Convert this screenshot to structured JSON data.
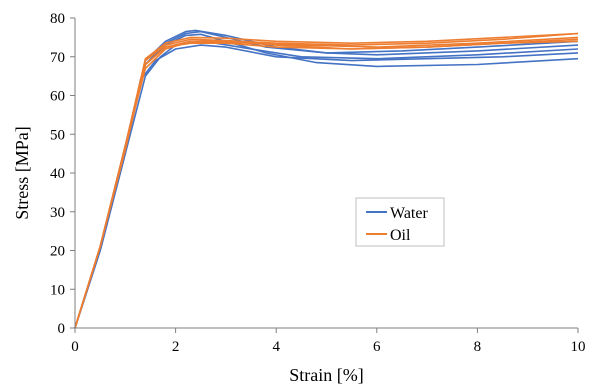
{
  "chart_data": {
    "type": "line",
    "title": "",
    "xlabel": "Strain [%]",
    "ylabel": "Stress [MPa]",
    "xlim": [
      0,
      10
    ],
    "ylim": [
      0,
      80
    ],
    "xticks": [
      0,
      2,
      4,
      6,
      8,
      10
    ],
    "yticks": [
      0,
      10,
      20,
      30,
      40,
      50,
      60,
      70,
      80
    ],
    "grid": false,
    "legend": {
      "placement": "center-right",
      "entries": [
        "Water",
        "Oil"
      ]
    },
    "colors": {
      "Water": "#4472C4",
      "Oil": "#ED7D31"
    },
    "series": [
      {
        "name": "Water",
        "color": "#4472C4",
        "points": [
          [
            0,
            0
          ],
          [
            0.5,
            20
          ],
          [
            1.0,
            45
          ],
          [
            1.4,
            65
          ],
          [
            1.7,
            70
          ],
          [
            2.0,
            73
          ],
          [
            2.3,
            74
          ],
          [
            2.8,
            73.5
          ],
          [
            3.5,
            72
          ],
          [
            4.5,
            70
          ],
          [
            6,
            69.5
          ],
          [
            8,
            70.5
          ],
          [
            10,
            72
          ]
        ]
      },
      {
        "color": "#4472C4",
        "points": [
          [
            0,
            0
          ],
          [
            0.5,
            20
          ],
          [
            1.0,
            45
          ],
          [
            1.3,
            64
          ],
          [
            1.6,
            69
          ],
          [
            2.0,
            72
          ],
          [
            2.5,
            73
          ],
          [
            3.0,
            72.5
          ],
          [
            4.0,
            70
          ],
          [
            5.5,
            69
          ],
          [
            7,
            69.5
          ],
          [
            8.5,
            70
          ],
          [
            10,
            71
          ]
        ]
      },
      {
        "color": "#4472C4",
        "points": [
          [
            0,
            0
          ],
          [
            0.5,
            21
          ],
          [
            1.0,
            47
          ],
          [
            1.4,
            68
          ],
          [
            1.8,
            73
          ],
          [
            2.2,
            75.5
          ],
          [
            2.5,
            75.8
          ],
          [
            3.0,
            74
          ],
          [
            3.8,
            71
          ],
          [
            4.8,
            68.5
          ],
          [
            6,
            67.5
          ],
          [
            8,
            68
          ],
          [
            10,
            69.5
          ]
        ]
      },
      {
        "color": "#4472C4",
        "points": [
          [
            0,
            0
          ],
          [
            0.5,
            21
          ],
          [
            1.0,
            47
          ],
          [
            1.4,
            68
          ],
          [
            1.8,
            73.5
          ],
          [
            2.2,
            76
          ],
          [
            2.5,
            76.5
          ],
          [
            3.0,
            75
          ],
          [
            3.8,
            72.5
          ],
          [
            5,
            71
          ],
          [
            6,
            70.5
          ],
          [
            8,
            71.5
          ],
          [
            10,
            73
          ]
        ]
      },
      {
        "color": "#4472C4",
        "points": [
          [
            0,
            0
          ],
          [
            0.5,
            21
          ],
          [
            1.0,
            47
          ],
          [
            1.4,
            69
          ],
          [
            1.8,
            74
          ],
          [
            2.2,
            76.5
          ],
          [
            2.4,
            76.8
          ],
          [
            3.0,
            75.5
          ],
          [
            4.0,
            72.5
          ],
          [
            5,
            71
          ],
          [
            6.5,
            71.5
          ],
          [
            8,
            72.5
          ],
          [
            10,
            74
          ]
        ]
      },
      {
        "name": "Oil",
        "color": "#ED7D31",
        "points": [
          [
            0,
            0
          ],
          [
            0.5,
            21
          ],
          [
            1.0,
            47
          ],
          [
            1.4,
            67
          ],
          [
            1.8,
            72
          ],
          [
            2.2,
            73.5
          ],
          [
            2.8,
            73.8
          ],
          [
            3.5,
            73.5
          ],
          [
            4.5,
            73
          ],
          [
            6,
            72.5
          ],
          [
            8,
            73.5
          ],
          [
            10,
            75
          ]
        ]
      },
      {
        "color": "#ED7D31",
        "points": [
          [
            0,
            0
          ],
          [
            0.5,
            21
          ],
          [
            1.0,
            47
          ],
          [
            1.4,
            68
          ],
          [
            1.8,
            72.5
          ],
          [
            2.3,
            74
          ],
          [
            3.0,
            74
          ],
          [
            4.0,
            73
          ],
          [
            5.5,
            72
          ],
          [
            7,
            72.5
          ],
          [
            8.5,
            73.5
          ],
          [
            10,
            74.5
          ]
        ]
      },
      {
        "color": "#ED7D31",
        "points": [
          [
            0,
            0
          ],
          [
            0.5,
            21
          ],
          [
            1.0,
            47
          ],
          [
            1.4,
            69
          ],
          [
            1.8,
            73
          ],
          [
            2.3,
            74.5
          ],
          [
            3.0,
            74.2
          ],
          [
            4.0,
            73.5
          ],
          [
            5.5,
            73
          ],
          [
            7,
            73.5
          ],
          [
            8.5,
            74.5
          ],
          [
            10,
            76
          ]
        ]
      },
      {
        "color": "#ED7D31",
        "points": [
          [
            0,
            0
          ],
          [
            0.5,
            21
          ],
          [
            1.0,
            47
          ],
          [
            1.4,
            69.5
          ],
          [
            1.8,
            73.5
          ],
          [
            2.3,
            75
          ],
          [
            3.0,
            74.8
          ],
          [
            4.0,
            74
          ],
          [
            5.5,
            73.5
          ],
          [
            7,
            74
          ],
          [
            8.5,
            75
          ],
          [
            10,
            76
          ]
        ]
      },
      {
        "color": "#ED7D31",
        "points": [
          [
            0,
            0
          ],
          [
            0.5,
            21
          ],
          [
            1.0,
            46
          ],
          [
            1.4,
            68
          ],
          [
            1.8,
            72.5
          ],
          [
            2.3,
            73.5
          ],
          [
            3.0,
            73.5
          ],
          [
            4.0,
            72.5
          ],
          [
            5.5,
            72
          ],
          [
            7,
            72.5
          ],
          [
            8.5,
            73.5
          ],
          [
            10,
            74
          ]
        ]
      }
    ]
  }
}
